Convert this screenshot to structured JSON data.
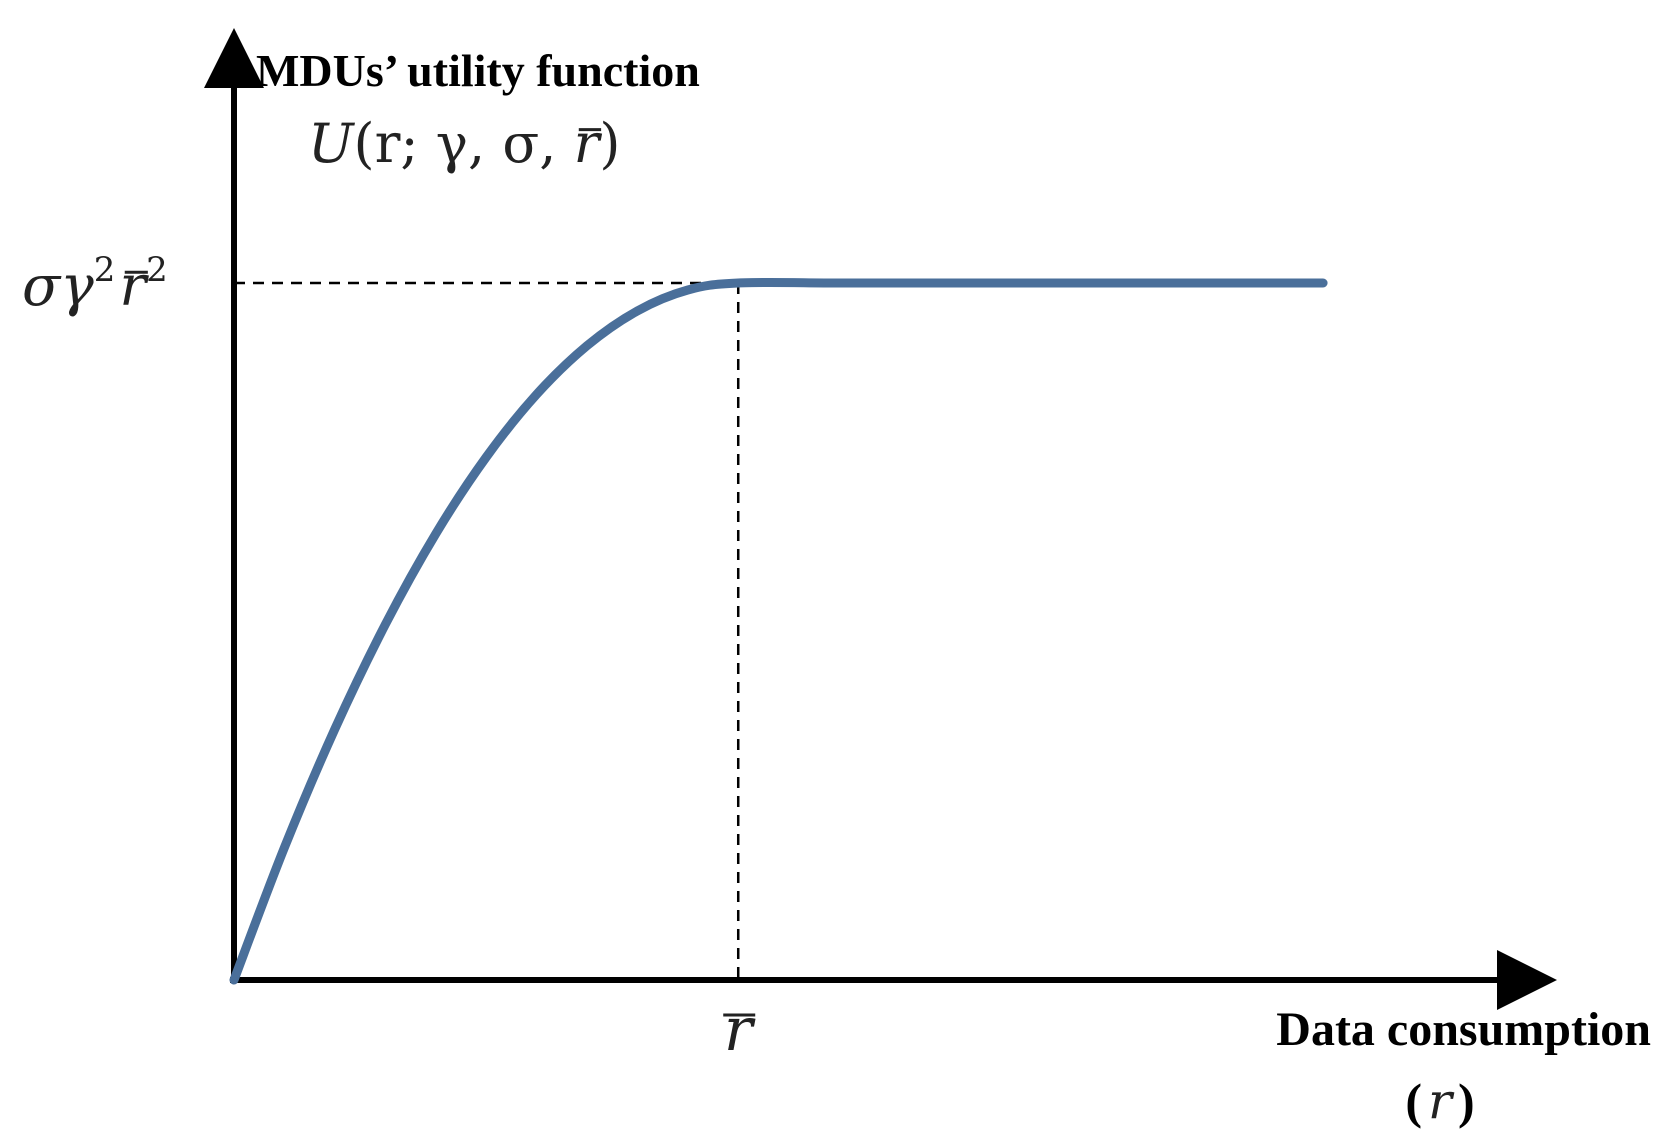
{
  "chart_data": {
    "type": "line",
    "title": "MDUs’ utility function",
    "ylabel_math": {
      "prefix": "U",
      "args": "(r; γ, σ, ",
      "rbar": "r",
      "close": ")"
    },
    "xlabel": "Data consumption",
    "xlabel_var": {
      "open": "(",
      "var": "r",
      "close": ")"
    },
    "y_tick_label": {
      "sigma": "σ",
      "gamma": "γ",
      "rbar": "r",
      "sup": "2"
    },
    "x_tick_label": "r",
    "series": [
      {
        "color": "#4a6f9a",
        "x": [
          0,
          0.1,
          0.2,
          0.3,
          0.4,
          0.5,
          0.6,
          0.7,
          0.8,
          0.9,
          1.0,
          1.2,
          1.4,
          1.6,
          1.8,
          2.0,
          2.16
        ],
        "y": [
          0,
          0.19,
          0.36,
          0.51,
          0.64,
          0.75,
          0.84,
          0.91,
          0.96,
          0.99,
          1.0,
          1.0,
          1.0,
          1.0,
          1.0,
          1.0,
          1.0
        ]
      }
    ],
    "xlim": [
      0,
      2.6
    ],
    "ylim": [
      0,
      1.0
    ],
    "reference_lines": {
      "x": 1.0,
      "y": 1.0,
      "style": "dashed"
    },
    "grid": false,
    "legend": "none"
  }
}
